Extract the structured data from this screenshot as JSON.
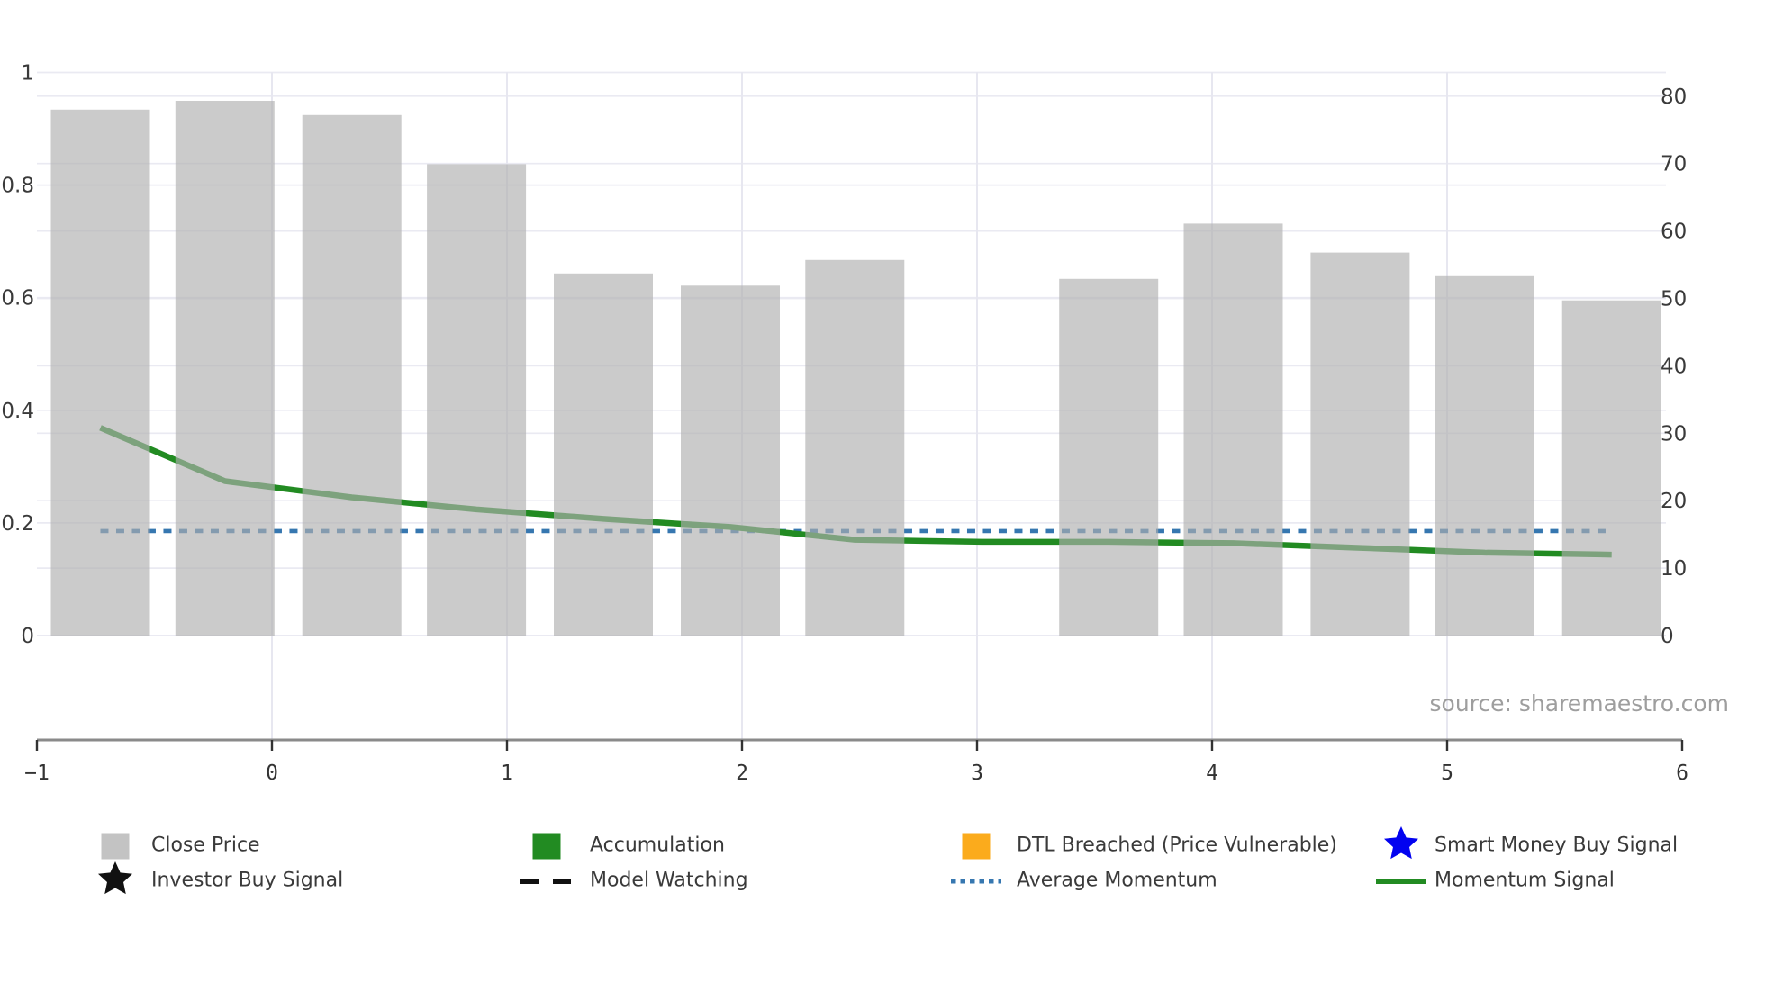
{
  "source_text": "source: sharemaestro.com",
  "legend": {
    "items": [
      {
        "label": "Close Price",
        "swatch": "square",
        "color": "#c3c3c3",
        "row": 0,
        "col": 0
      },
      {
        "label": "Accumulation",
        "swatch": "square",
        "color": "#228b22",
        "row": 0,
        "col": 1
      },
      {
        "label": "DTL Breached (Price Vulnerable)",
        "swatch": "square",
        "color": "#fbab1c",
        "row": 0,
        "col": 2
      },
      {
        "label": "Smart Money Buy Signal",
        "swatch": "star",
        "color": "#0202f0",
        "row": 0,
        "col": 3
      },
      {
        "label": "Investor Buy Signal",
        "swatch": "star",
        "color": "#111111",
        "row": 1,
        "col": 0
      },
      {
        "label": "Model Watching",
        "swatch": "dash",
        "color": "#111111",
        "row": 1,
        "col": 1
      },
      {
        "label": "Average Momentum",
        "swatch": "dots",
        "color": "#3677b0",
        "row": 1,
        "col": 2
      },
      {
        "label": "Momentum Signal",
        "swatch": "line",
        "color": "#228b22",
        "row": 1,
        "col": 3
      }
    ]
  },
  "chart_data": {
    "type": "combo",
    "title": "",
    "xlabel": "",
    "ylabel_left": "",
    "ylabel_right": "",
    "x_positions": [
      -0.73,
      -0.2,
      0.34,
      0.87,
      1.41,
      1.95,
      2.48,
      3.02,
      3.56,
      4.09,
      4.63,
      5.16,
      5.7
    ],
    "series": [
      {
        "name": "Close Price",
        "type": "bar",
        "axis": "right",
        "color": "#cbcbcb",
        "values": [
          78.0,
          79.3,
          77.2,
          69.9,
          53.7,
          51.9,
          55.7,
          null,
          52.9,
          61.1,
          56.8,
          53.3,
          49.7
        ]
      },
      {
        "name": "Momentum Signal",
        "type": "line",
        "axis": "right",
        "color": "#228b22",
        "values": [
          30.8,
          22.9,
          20.5,
          18.7,
          17.3,
          16.1,
          14.2,
          13.9,
          13.9,
          13.7,
          13.0,
          12.3,
          12.0
        ]
      },
      {
        "name": "Average Momentum",
        "type": "hline_dotted",
        "axis": "right",
        "color": "#3677b0",
        "value": 15.5
      }
    ],
    "x_axis": {
      "tick_values": [
        -1,
        0,
        1,
        2,
        3,
        4,
        5,
        6
      ],
      "tick_labels": [
        "−1",
        "0",
        "1",
        "2",
        "3",
        "4",
        "5",
        "6"
      ],
      "range": [
        -1,
        6
      ]
    },
    "y_axis_left": {
      "tick_values": [
        0,
        0.2,
        0.4,
        0.6,
        0.8,
        1
      ],
      "tick_labels": [
        "0",
        "0.2",
        "0.4",
        "0.6",
        "0.8",
        "1"
      ],
      "range": [
        0,
        1.07
      ]
    },
    "y_axis_right": {
      "tick_values": [
        0,
        10,
        20,
        30,
        40,
        50,
        60,
        70,
        80
      ],
      "tick_labels": [
        "0",
        "10",
        "20",
        "30",
        "40",
        "50",
        "60",
        "70",
        "80"
      ],
      "range": [
        0,
        86
      ]
    },
    "grid": "both-axes-horizontal-plus-vertical-at-integers",
    "legend_position": "bottom"
  }
}
